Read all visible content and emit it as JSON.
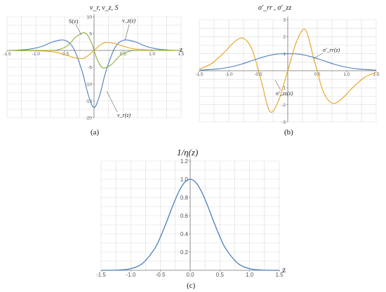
{
  "chart_data": [
    {
      "type": "line",
      "panel_label": "(a)",
      "title": "v_r, v_z, S",
      "xlabel": "z",
      "xlim": [
        -1.5,
        1.5
      ],
      "ylim": [
        -20,
        10
      ],
      "x_ticks": [
        -1.5,
        -1.0,
        -0.5,
        0.5,
        1.0,
        1.5
      ],
      "x_tick_labels": [
        "-1.5",
        "-1.0",
        "-0.5",
        "0.5",
        "1.0",
        "1.5"
      ],
      "y_ticks": [
        -20,
        -15,
        -10,
        -5,
        5,
        10
      ],
      "y_tick_labels": [
        "-20",
        "-15",
        "-10",
        "-5",
        "5",
        "10"
      ],
      "grid": true,
      "series": [
        {
          "name": "v_r(z)",
          "color": "#4a7ebb",
          "x": [
            -1.5,
            -1.3,
            -1.1,
            -0.9,
            -0.7,
            -0.5,
            -0.35,
            -0.2,
            -0.1,
            0,
            0.1,
            0.2,
            0.35,
            0.5,
            0.7,
            0.9,
            1.1,
            1.3,
            1.5
          ],
          "y": [
            0,
            0.1,
            0.4,
            1.2,
            2.6,
            3,
            0.5,
            -6.5,
            -13.2,
            -17,
            -13.2,
            -6.5,
            0.5,
            3,
            2.6,
            1.2,
            0.4,
            0.1,
            0
          ]
        },
        {
          "name": "v_z(z)",
          "color": "#e5a11d",
          "x": [
            -1.5,
            -1.0,
            -0.7,
            -0.5,
            -0.35,
            -0.2,
            -0.1,
            0,
            0.1,
            0.2,
            0.35,
            0.5,
            0.7,
            1.0,
            1.5
          ],
          "y": [
            0,
            -0.1,
            -0.4,
            -1.3,
            -2.1,
            -2.4,
            -1.5,
            0,
            1.5,
            2.4,
            2.1,
            1.3,
            0.4,
            0.1,
            0
          ]
        },
        {
          "name": "S(z)",
          "color": "#8ab03c",
          "x": [
            -1.5,
            -0.8,
            -0.6,
            -0.45,
            -0.3,
            -0.15,
            -0.05,
            0,
            0.05,
            0.15,
            0.3,
            0.45,
            0.6,
            0.8,
            1.5
          ],
          "y": [
            0,
            0,
            0.3,
            1.5,
            4.2,
            5.2,
            2.5,
            0,
            -2.5,
            -5.2,
            -4.2,
            -1.5,
            -0.3,
            0,
            0
          ]
        }
      ],
      "annotations": [
        "S(z)",
        "v_z(z)",
        "v_r(z)"
      ]
    },
    {
      "type": "line",
      "panel_label": "(b)",
      "title": "σ'_rr , σ'_zz",
      "xlim": [
        -1.5,
        1.5
      ],
      "ylim": [
        -3,
        3
      ],
      "x_ticks": [
        -1.5,
        -1.0,
        -0.5,
        0.5,
        1.0,
        1.5
      ],
      "x_tick_labels": [
        "-1.5",
        "-1.0",
        "-0.5",
        "0.5",
        "1.0",
        "1.5"
      ],
      "y_ticks": [
        -3,
        -2,
        -1,
        1,
        2,
        3
      ],
      "y_tick_labels": [
        "-3",
        "-2",
        "-1",
        "1",
        "2",
        "3"
      ],
      "grid": true,
      "series": [
        {
          "name": "σ'_rr(z)",
          "color": "#4a7ebb",
          "x": [
            -1.5,
            -1.2,
            -1.0,
            -0.8,
            -0.6,
            -0.4,
            -0.2,
            0,
            0.2,
            0.4,
            0.6,
            0.8,
            1.0,
            1.2,
            1.5
          ],
          "y": [
            0.03,
            0.1,
            0.2,
            0.37,
            0.6,
            0.82,
            0.97,
            1.0,
            0.97,
            0.82,
            0.6,
            0.37,
            0.2,
            0.1,
            0.03
          ]
        },
        {
          "name": "σ'_zz(z)",
          "color": "#e5a11d",
          "x": [
            -1.5,
            -1.3,
            -1.1,
            -0.9,
            -0.75,
            -0.6,
            -0.45,
            -0.3,
            -0.15,
            0,
            0.15,
            0.3,
            0.45,
            0.6,
            0.75,
            0.9,
            1.1,
            1.3,
            1.5
          ],
          "y": [
            0.1,
            0.4,
            1.0,
            1.7,
            1.9,
            1.2,
            -0.6,
            -2.4,
            -1.7,
            0,
            1.7,
            2.4,
            0.6,
            -1.2,
            -1.9,
            -1.7,
            -1.0,
            -0.4,
            -0.1
          ]
        }
      ],
      "annotations": [
        "σ'_rr(z)",
        "σ'_zz(z)"
      ]
    },
    {
      "type": "line",
      "panel_label": "(c)",
      "title": "1/η(z)",
      "xlabel": "z",
      "xlim": [
        -1.5,
        1.5
      ],
      "ylim": [
        0,
        1.2
      ],
      "x_ticks": [
        -1.5,
        -1.0,
        -0.5,
        0.0,
        0.5,
        1.0,
        1.5
      ],
      "x_tick_labels": [
        "-1.5",
        "-1.0",
        "-0.5",
        "0.0",
        "0.5",
        "1.0",
        "1.5"
      ],
      "y_ticks": [
        0.2,
        0.4,
        0.6,
        0.8,
        1.0,
        1.2
      ],
      "y_tick_labels": [
        "0.2",
        "0.4",
        "0.6",
        "0.8",
        "1.0",
        "1.2"
      ],
      "grid": true,
      "series": [
        {
          "name": "1/η(z)",
          "color": "#4a7ebb",
          "x": [
            -1.5,
            -1.2,
            -1.0,
            -0.8,
            -0.6,
            -0.5,
            -0.4,
            -0.3,
            -0.2,
            -0.1,
            0,
            0.1,
            0.2,
            0.3,
            0.4,
            0.5,
            0.6,
            0.8,
            1.0,
            1.2,
            1.5
          ],
          "y": [
            0.0,
            0.003,
            0.018,
            0.077,
            0.236,
            0.368,
            0.527,
            0.698,
            0.852,
            0.961,
            1.0,
            0.961,
            0.852,
            0.698,
            0.527,
            0.368,
            0.236,
            0.077,
            0.018,
            0.003,
            0.0
          ]
        }
      ]
    }
  ]
}
